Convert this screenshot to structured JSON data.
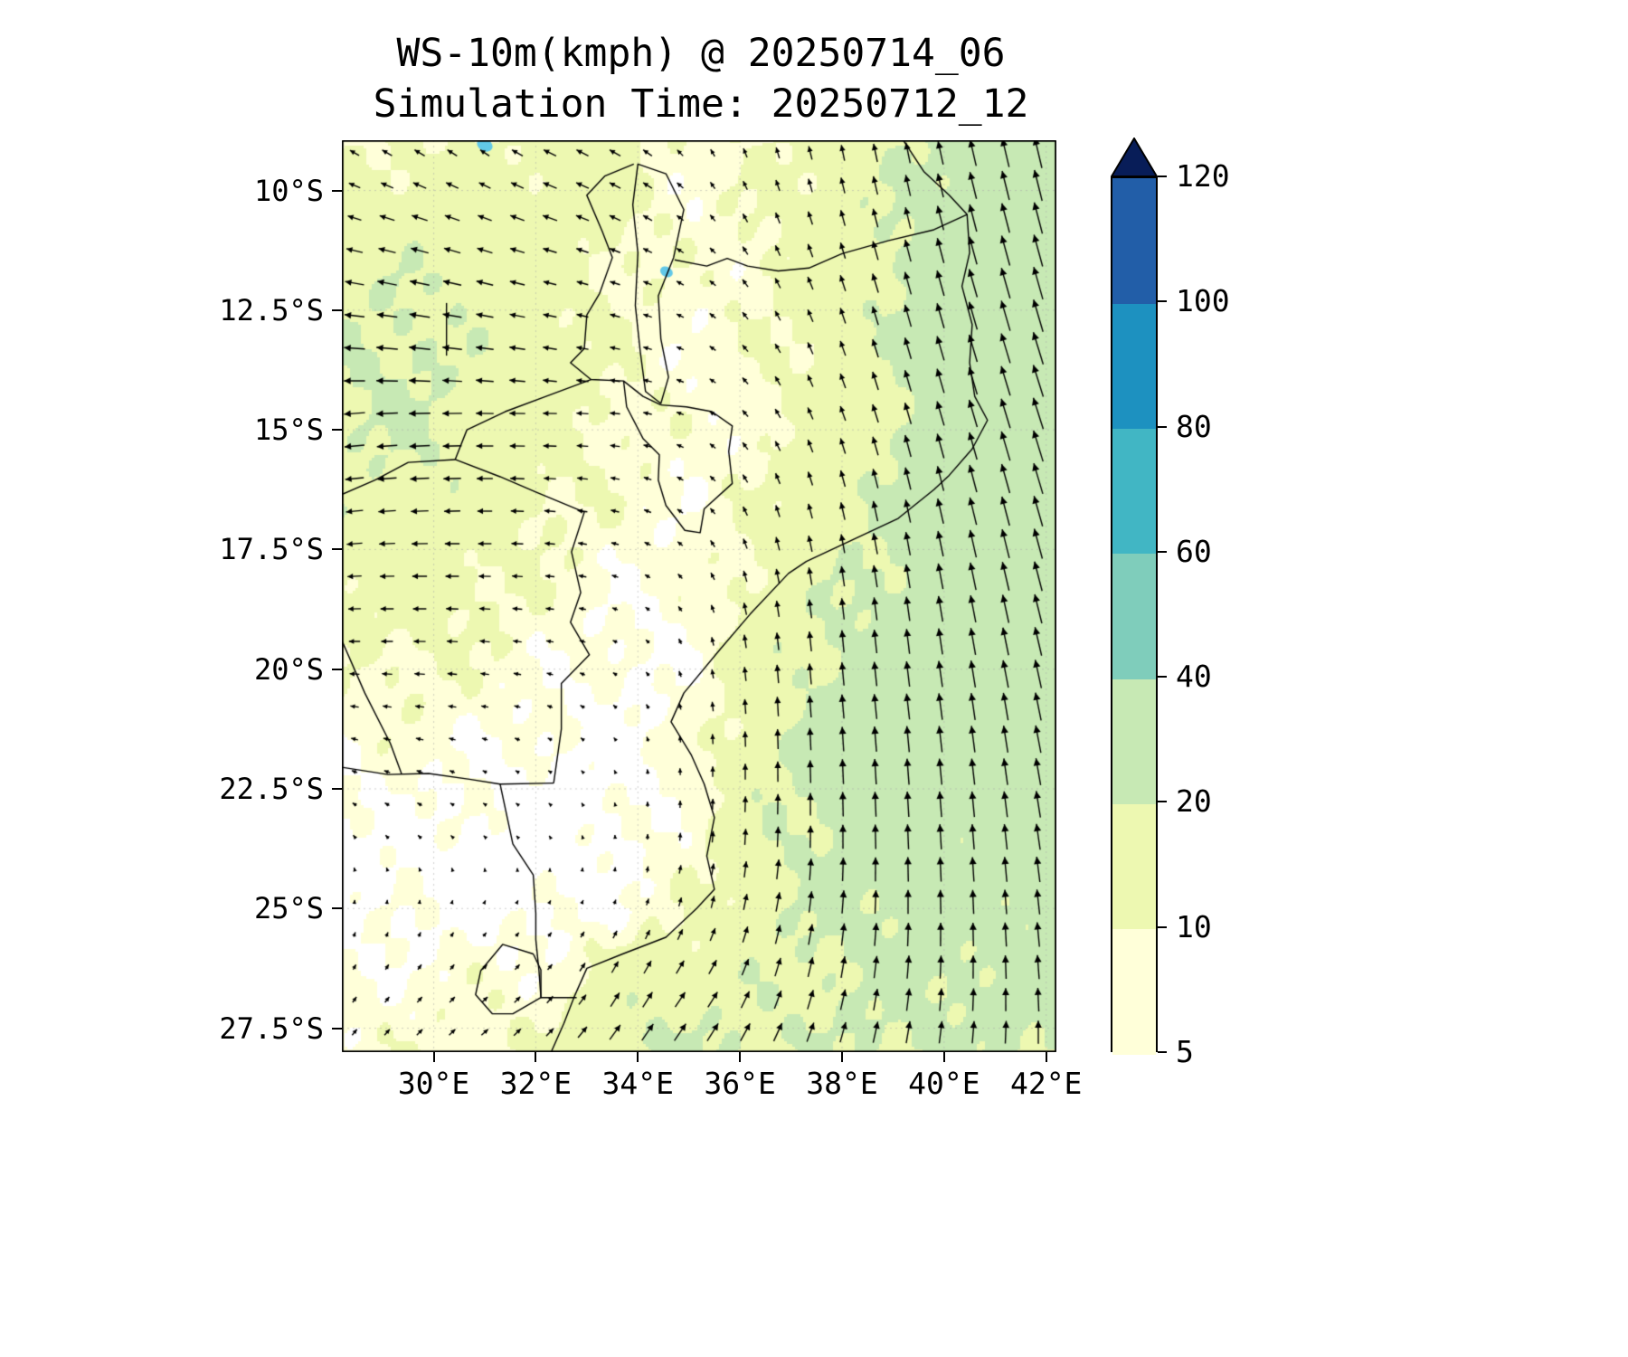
{
  "title": {
    "line1": "WS-10m(kmph) @ 20250714_06",
    "line2": "Simulation Time: 20250712_12"
  },
  "chart_data": {
    "type": "heatmap",
    "subtype": "wind_quiver_filled_contour_map",
    "title": "WS-10m(kmph) @ 20250714_06",
    "subtitle": "Simulation Time: 20250712_12",
    "variable": "WS-10m",
    "units": "kmph",
    "valid_time": "20250714_06",
    "simulation_time": "20250712_12",
    "grid_on": true,
    "lon_range": [
      28.2,
      42.2
    ],
    "lat_range": [
      -28.0,
      -8.95
    ],
    "x_tick_values": [
      30,
      32,
      34,
      36,
      38,
      40,
      42
    ],
    "x_tick_labels": [
      "30°E",
      "32°E",
      "34°E",
      "36°E",
      "38°E",
      "40°E",
      "42°E"
    ],
    "y_tick_values": [
      -10,
      -12.5,
      -15,
      -17.5,
      -20,
      -22.5,
      -25,
      -27.5
    ],
    "y_tick_labels": [
      "10°S",
      "12.5°S",
      "15°S",
      "17.5°S",
      "20°S",
      "22.5°S",
      "25°S",
      "27.5°S"
    ],
    "colorbar": {
      "orientation": "vertical",
      "extend": "max",
      "levels": [
        5,
        10,
        20,
        40,
        60,
        80,
        100,
        120
      ],
      "tick_labels": [
        "5",
        "10",
        "20",
        "40",
        "60",
        "80",
        "100",
        "120"
      ],
      "band_colors": [
        "#ffffd9",
        "#edf8b1",
        "#c7e9b4",
        "#7fcdbb",
        "#41b6c4",
        "#1d91c0",
        "#225ea8"
      ],
      "under_color": "#ffffff",
      "over_color": "#081d58"
    },
    "wind_field": {
      "lons": [
        28.2,
        29.6,
        31.0,
        32.4,
        33.8,
        35.2,
        36.6,
        38.0,
        39.4,
        40.8,
        42.2
      ],
      "lats": [
        -9.0,
        -10.46,
        -11.92,
        -13.38,
        -14.85,
        -16.31,
        -17.77,
        -19.23,
        -20.69,
        -22.15,
        -23.62,
        -25.08,
        -26.54,
        -28.0
      ],
      "u_kmph": [
        [
          -8,
          -9,
          -8,
          -12,
          -10,
          -4,
          -3,
          -3,
          -4,
          -6,
          -7
        ],
        [
          -12,
          -15,
          -13,
          -14,
          -10,
          -5,
          -4,
          -4,
          -5,
          -7,
          -8
        ],
        [
          -18,
          -19,
          -16,
          -12,
          -9,
          -6,
          -5,
          -5,
          -6,
          -8,
          -9
        ],
        [
          -20,
          -21,
          -17,
          -13,
          -9,
          -6,
          -5,
          -5,
          -6,
          -8,
          -10
        ],
        [
          -20,
          -21,
          -17,
          -13,
          -9,
          -6,
          -5,
          -5,
          -6,
          -8,
          -10
        ],
        [
          -17,
          -18,
          -15,
          -11,
          -8,
          -5,
          -4,
          -4,
          -5,
          -7,
          -9
        ],
        [
          -14,
          -15,
          -12,
          -9,
          -6,
          -4,
          -3,
          -3,
          -4,
          -6,
          -8
        ],
        [
          -11,
          -12,
          -10,
          -7,
          -4,
          -2,
          -2,
          -2,
          -3,
          -5,
          -7
        ],
        [
          -8,
          -9,
          -7,
          -5,
          -3,
          -1,
          -1,
          -2,
          -3,
          -4,
          -6
        ],
        [
          -5,
          -6,
          -4,
          -3,
          -1,
          0,
          0,
          -1,
          -2,
          -3,
          -5
        ],
        [
          -2,
          -3,
          -2,
          -1,
          0,
          1,
          1,
          0,
          -1,
          -2,
          -4
        ],
        [
          1,
          1,
          2,
          2,
          2,
          3,
          4,
          2,
          0,
          -1,
          -3
        ],
        [
          3,
          4,
          5,
          5,
          8,
          9,
          6,
          4,
          2,
          0,
          -2
        ],
        [
          5,
          6,
          7,
          8,
          12,
          12,
          9,
          6,
          4,
          2,
          0
        ]
      ],
      "v_kmph": [
        [
          5,
          6,
          6,
          6,
          6,
          6,
          10,
          15,
          20,
          26,
          30
        ],
        [
          4,
          5,
          5,
          5,
          5,
          5,
          10,
          15,
          21,
          27,
          31
        ],
        [
          3,
          4,
          4,
          3,
          3,
          4,
          9,
          15,
          22,
          28,
          32
        ],
        [
          1,
          2,
          2,
          2,
          2,
          3,
          8,
          14,
          21,
          27,
          32
        ],
        [
          -2,
          -1,
          0,
          0,
          1,
          3,
          8,
          14,
          21,
          27,
          31
        ],
        [
          -2,
          -1,
          0,
          1,
          2,
          4,
          10,
          16,
          22,
          27,
          30
        ],
        [
          -1,
          0,
          0,
          1,
          2,
          5,
          13,
          19,
          23,
          27,
          29
        ],
        [
          0,
          0,
          1,
          1,
          2,
          6,
          16,
          21,
          24,
          26,
          28
        ],
        [
          1,
          1,
          1,
          2,
          3,
          7,
          18,
          23,
          25,
          26,
          27
        ],
        [
          2,
          2,
          2,
          2,
          3,
          8,
          19,
          24,
          25,
          25,
          26
        ],
        [
          3,
          3,
          2,
          2,
          4,
          9,
          19,
          23,
          24,
          24,
          25
        ],
        [
          4,
          4,
          3,
          3,
          5,
          10,
          18,
          22,
          23,
          23,
          24
        ],
        [
          5,
          5,
          5,
          6,
          14,
          13,
          17,
          20,
          22,
          22,
          23
        ],
        [
          6,
          6,
          6,
          8,
          16,
          18,
          17,
          19,
          21,
          21,
          22
        ]
      ]
    },
    "map_overlay": {
      "line_color": "#000000",
      "small_lake_color": "#62c8e8",
      "coastline": [
        [
          39.2,
          -8.95
        ],
        [
          39.6,
          -9.6
        ],
        [
          40.1,
          -10.1
        ],
        [
          40.45,
          -10.5
        ],
        [
          40.5,
          -11.3
        ],
        [
          40.35,
          -12.0
        ],
        [
          40.55,
          -12.8
        ],
        [
          40.5,
          -13.6
        ],
        [
          40.6,
          -14.3
        ],
        [
          40.85,
          -14.8
        ],
        [
          40.55,
          -15.4
        ],
        [
          40.1,
          -15.95
        ],
        [
          39.8,
          -16.25
        ],
        [
          39.1,
          -16.85
        ],
        [
          38.2,
          -17.3
        ],
        [
          37.3,
          -17.75
        ],
        [
          36.95,
          -18.0
        ],
        [
          36.2,
          -18.85
        ],
        [
          35.6,
          -19.6
        ],
        [
          34.9,
          -20.5
        ],
        [
          34.65,
          -21.1
        ],
        [
          35.05,
          -21.8
        ],
        [
          35.3,
          -22.4
        ],
        [
          35.5,
          -23.1
        ],
        [
          35.35,
          -23.9
        ],
        [
          35.5,
          -24.6
        ],
        [
          35.15,
          -25.0
        ],
        [
          34.55,
          -25.6
        ],
        [
          33.7,
          -25.95
        ],
        [
          33.0,
          -26.25
        ],
        [
          32.75,
          -26.85
        ],
        [
          32.55,
          -27.4
        ],
        [
          32.3,
          -28.0
        ]
      ],
      "lake_malawi": [
        [
          34.0,
          -9.45
        ],
        [
          34.55,
          -9.65
        ],
        [
          34.9,
          -10.4
        ],
        [
          34.7,
          -11.4
        ],
        [
          34.4,
          -12.2
        ],
        [
          34.45,
          -13.1
        ],
        [
          34.6,
          -13.9
        ],
        [
          34.45,
          -14.45
        ],
        [
          34.15,
          -14.2
        ],
        [
          34.05,
          -13.4
        ],
        [
          33.95,
          -12.4
        ],
        [
          34.0,
          -11.3
        ],
        [
          33.9,
          -10.3
        ]
      ],
      "borders": [
        [
          [
            40.45,
            -10.5
          ],
          [
            39.8,
            -10.82
          ],
          [
            38.9,
            -11.05
          ],
          [
            38.0,
            -11.32
          ],
          [
            37.35,
            -11.62
          ],
          [
            36.75,
            -11.68
          ],
          [
            36.15,
            -11.58
          ],
          [
            35.75,
            -11.42
          ],
          [
            35.35,
            -11.58
          ],
          [
            34.72,
            -11.45
          ]
        ],
        [
          [
            33.92,
            -9.45
          ],
          [
            33.35,
            -9.7
          ],
          [
            33.0,
            -10.1
          ],
          [
            33.3,
            -10.85
          ],
          [
            33.5,
            -11.4
          ],
          [
            33.25,
            -12.15
          ],
          [
            33.0,
            -12.6
          ],
          [
            32.95,
            -13.3
          ],
          [
            32.68,
            -13.6
          ],
          [
            33.08,
            -13.95
          ],
          [
            33.72,
            -13.98
          ],
          [
            34.1,
            -14.3
          ],
          [
            34.45,
            -14.48
          ]
        ],
        [
          [
            34.45,
            -14.48
          ],
          [
            34.95,
            -14.52
          ],
          [
            35.45,
            -14.62
          ],
          [
            35.85,
            -14.92
          ],
          [
            35.78,
            -15.45
          ],
          [
            35.85,
            -16.12
          ],
          [
            35.3,
            -16.65
          ],
          [
            35.22,
            -17.15
          ],
          [
            34.92,
            -17.1
          ],
          [
            34.55,
            -16.58
          ],
          [
            34.4,
            -16.05
          ],
          [
            34.42,
            -15.52
          ],
          [
            34.1,
            -15.18
          ],
          [
            33.78,
            -14.52
          ],
          [
            33.72,
            -13.98
          ]
        ],
        [
          [
            33.08,
            -13.95
          ],
          [
            32.2,
            -14.3
          ],
          [
            31.4,
            -14.62
          ],
          [
            30.65,
            -15.0
          ],
          [
            30.42,
            -15.62
          ]
        ],
        [
          [
            30.42,
            -15.62
          ],
          [
            29.5,
            -15.68
          ],
          [
            28.85,
            -16.05
          ],
          [
            28.2,
            -16.35
          ]
        ],
        [
          [
            30.42,
            -15.62
          ],
          [
            31.3,
            -15.98
          ],
          [
            32.0,
            -16.3
          ],
          [
            32.95,
            -16.72
          ],
          [
            32.7,
            -17.55
          ],
          [
            32.88,
            -18.4
          ],
          [
            32.68,
            -19.02
          ],
          [
            33.05,
            -19.7
          ],
          [
            32.5,
            -20.3
          ],
          [
            32.5,
            -21.25
          ],
          [
            32.35,
            -22.38
          ]
        ],
        [
          [
            28.2,
            -22.05
          ],
          [
            29.1,
            -22.2
          ],
          [
            29.9,
            -22.18
          ],
          [
            30.7,
            -22.3
          ],
          [
            31.3,
            -22.4
          ],
          [
            32.35,
            -22.38
          ]
        ],
        [
          [
            31.3,
            -22.4
          ],
          [
            31.55,
            -23.65
          ],
          [
            31.95,
            -24.3
          ],
          [
            32.0,
            -25.1
          ],
          [
            32.0,
            -25.65
          ],
          [
            32.06,
            -26.28
          ],
          [
            32.1,
            -26.86
          ],
          [
            32.8,
            -26.86
          ]
        ],
        [
          [
            31.95,
            -25.95
          ],
          [
            32.1,
            -26.28
          ],
          [
            32.1,
            -26.86
          ],
          [
            31.55,
            -27.2
          ],
          [
            31.15,
            -27.2
          ],
          [
            30.82,
            -26.8
          ],
          [
            30.92,
            -26.3
          ],
          [
            31.35,
            -25.75
          ],
          [
            31.95,
            -25.95
          ]
        ],
        [
          [
            28.2,
            -19.4
          ],
          [
            28.65,
            -20.5
          ],
          [
            29.15,
            -21.55
          ],
          [
            29.37,
            -22.19
          ]
        ],
        [
          [
            30.25,
            -12.35
          ],
          [
            30.25,
            -13.45
          ]
        ]
      ],
      "small_lakes": [
        {
          "lon": 34.56,
          "lat": -11.7,
          "r": 0.13
        },
        {
          "lon": 31.0,
          "lat": -9.05,
          "r": 0.16
        }
      ]
    }
  }
}
